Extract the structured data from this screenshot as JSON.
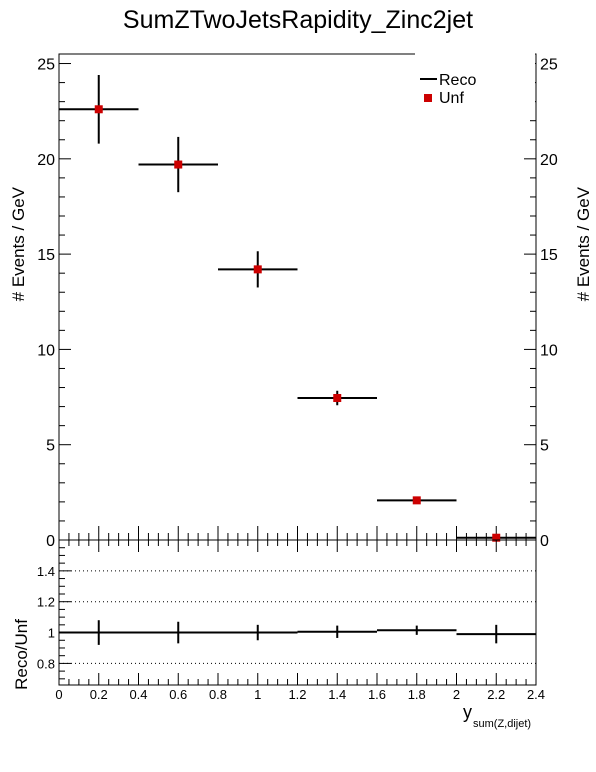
{
  "chart_data": [
    {
      "type": "scatter",
      "panel": "main",
      "title": "SumZTwoJetsRapidity_Zinc2jet",
      "ylabel": "# Events / GeV",
      "ylabel_right": "# Events / GeV",
      "xlim": [
        0,
        2.4
      ],
      "ylim": [
        0,
        25.5
      ],
      "y_ticks": [
        0,
        5,
        10,
        15,
        20,
        25
      ],
      "legend_placement": "top-right",
      "grid": false,
      "series": [
        {
          "name": "Reco",
          "color": "#000000",
          "marker": "error-bar",
          "x": [
            0.2,
            0.6,
            1.0,
            1.4,
            1.8,
            2.2
          ],
          "x_err": [
            0.2,
            0.2,
            0.2,
            0.2,
            0.2,
            0.2
          ],
          "values": [
            22.6,
            19.7,
            14.2,
            7.45,
            2.08,
            0.12
          ],
          "y_err": [
            1.8,
            1.45,
            0.95,
            0.38,
            0.15,
            0.08
          ]
        },
        {
          "name": "Unf",
          "color": "#cc0000",
          "marker": "square",
          "x": [
            0.2,
            0.6,
            1.0,
            1.4,
            1.8,
            2.2
          ],
          "values": [
            22.6,
            19.7,
            14.2,
            7.45,
            2.08,
            0.12
          ]
        }
      ]
    },
    {
      "type": "scatter",
      "panel": "ratio",
      "ylabel": "Reco/Unf",
      "xlabel": "y",
      "xlabel_sub": "sum(Z,dijet)",
      "xlim": [
        0,
        2.4
      ],
      "ylim": [
        0.66,
        1.6
      ],
      "y_ticks": [
        0.8,
        1,
        1.2,
        1.4
      ],
      "y_tick_labels": [
        "0.8",
        "1",
        "1.2",
        "1.4"
      ],
      "x_ticks": [
        0,
        0.2,
        0.4,
        0.6,
        0.8,
        1,
        1.2,
        1.4,
        1.6,
        1.8,
        2,
        2.2,
        2.4
      ],
      "x_tick_labels": [
        "0",
        "0.2",
        "0.4",
        "0.6",
        "0.8",
        "1",
        "1.2",
        "1.4",
        "1.6",
        "1.8",
        "2",
        "2.2",
        "2.4"
      ],
      "reference_lines": [
        0.8,
        1.2,
        1.4
      ],
      "series": [
        {
          "name": "",
          "color": "#000000",
          "x": [
            0.2,
            0.6,
            1.0,
            1.4,
            1.8,
            2.2
          ],
          "x_err": [
            0.2,
            0.2,
            0.2,
            0.2,
            0.2,
            0.2
          ],
          "values": [
            1.0,
            1.0,
            1.0,
            1.005,
            1.015,
            0.99
          ],
          "y_err": [
            0.08,
            0.07,
            0.05,
            0.04,
            0.03,
            0.06
          ]
        }
      ]
    }
  ]
}
